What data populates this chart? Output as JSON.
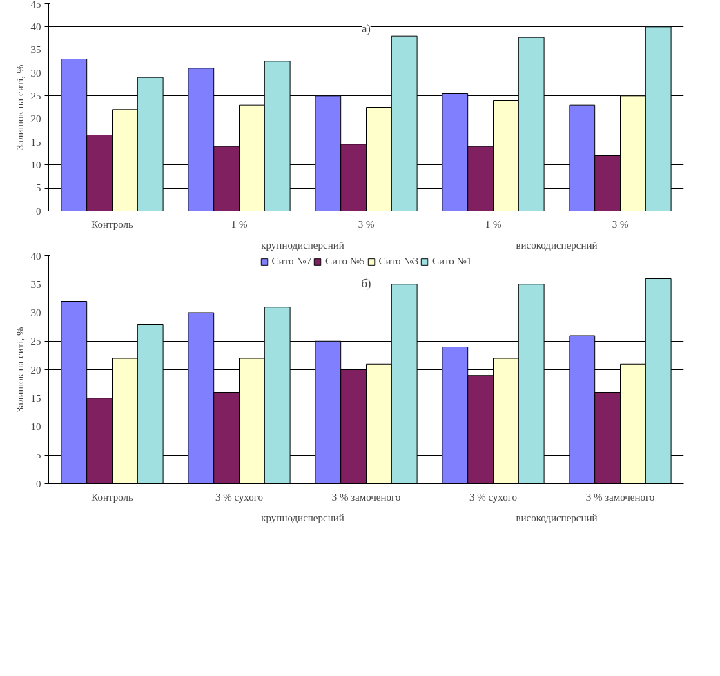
{
  "chart_data": [
    {
      "type": "bar",
      "ylabel": "Залишок на ситі, %",
      "categories": [
        "Контроль",
        "1 %",
        "3 %",
        "1 %",
        "3 %"
      ],
      "annotations": [
        "а)",
        "крупнодисперсний",
        "високодисперсний"
      ],
      "ylim": [
        0,
        45
      ],
      "yticks": [
        0,
        5,
        10,
        15,
        20,
        25,
        30,
        35,
        40,
        45
      ],
      "grid": "y",
      "legend": false,
      "series": [
        {
          "color": "#8080ff",
          "values": [
            33,
            31,
            25,
            25.5,
            23
          ]
        },
        {
          "color": "#802060",
          "values": [
            16.5,
            14,
            14.5,
            14,
            12
          ]
        },
        {
          "color": "#ffffcc",
          "values": [
            22,
            23,
            22.5,
            24,
            25
          ]
        },
        {
          "color": "#a0e0e0",
          "values": [
            29,
            32.5,
            38,
            37.7,
            40
          ]
        }
      ]
    },
    {
      "type": "bar",
      "ylabel": "Залишок на ситі, %",
      "categories": [
        "Контроль",
        "3 % сухого",
        "3 % замоченого",
        "3 % сухого",
        "3 % замоченого"
      ],
      "annotations": [
        "б)",
        "крупнодисперсний",
        "високодисперсний"
      ],
      "ylim": [
        0,
        40
      ],
      "yticks": [
        0,
        5,
        10,
        15,
        20,
        25,
        30,
        35,
        40
      ],
      "grid": "y",
      "legend": "top",
      "series": [
        {
          "name": "Сито №7",
          "color": "#8080ff",
          "values": [
            32,
            30,
            25,
            24,
            26
          ]
        },
        {
          "name": "Сито №5",
          "color": "#802060",
          "values": [
            15,
            16,
            20,
            19,
            16
          ]
        },
        {
          "name": "Сито №3",
          "color": "#ffffcc",
          "values": [
            22,
            22,
            21,
            22,
            21
          ]
        },
        {
          "name": "Сито №1",
          "color": "#a0e0e0",
          "values": [
            28,
            31,
            35,
            35,
            36
          ]
        }
      ]
    }
  ]
}
